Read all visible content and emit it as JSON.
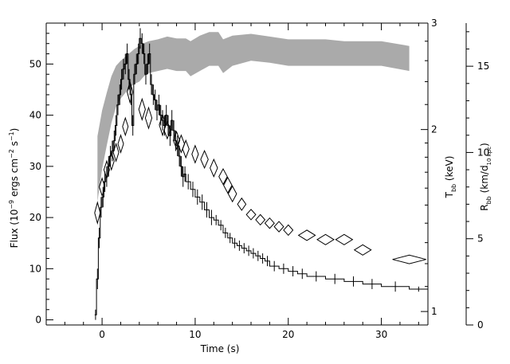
{
  "chart_data": {
    "type": "line",
    "axes": {
      "x": {
        "label": "Time (s)",
        "range": [
          -6,
          35
        ],
        "ticks": [
          0,
          10,
          20,
          30
        ],
        "minor_step": 2
      },
      "y_left": {
        "label_main": "Flux (10",
        "label_exp1": "−9",
        "label_mid": " ergs cm",
        "label_exp2": "−2",
        "label_mid2": " s",
        "label_exp3": "−1",
        "label_end": ")",
        "range": [
          -1,
          58
        ],
        "ticks": [
          0,
          10,
          20,
          30,
          40,
          50
        ],
        "minor_step": 2
      },
      "y_temp": {
        "label_main": "T",
        "label_sub": "bb",
        "label_end": " (keV)",
        "scale": "log",
        "range": [
          0.95,
          3.0
        ],
        "ticks": [
          1,
          2,
          3
        ],
        "minor_ticks": [
          1.1,
          1.2,
          1.3,
          1.4,
          1.5,
          1.6,
          1.7,
          1.8,
          1.9,
          2.2,
          2.4,
          2.6,
          2.8
        ]
      },
      "y_radius": {
        "label_main": "R",
        "label_sub": "bb",
        "label_mid": " (km/d",
        "label_sub2": "10 kpc",
        "label_end": ")",
        "range": [
          0,
          17.5
        ],
        "ticks": [
          0,
          5,
          10,
          15
        ],
        "minor_step": 1
      }
    },
    "series": [
      {
        "kind": "flux_histogram",
        "axis": "y_left",
        "t_edges": [
          -0.8,
          -0.6,
          -0.4,
          -0.2,
          0.0,
          0.2,
          0.4,
          0.6,
          0.8,
          1.0,
          1.2,
          1.4,
          1.6,
          1.8,
          2.0,
          2.2,
          2.4,
          2.6,
          2.8,
          3.0,
          3.2,
          3.4,
          3.6,
          3.8,
          4.0,
          4.2,
          4.4,
          4.6,
          4.8,
          5.0,
          5.2,
          5.4,
          5.6,
          5.8,
          6.0,
          6.2,
          6.4,
          6.6,
          6.8,
          7.0,
          7.2,
          7.4,
          7.6,
          7.8,
          8.0,
          8.2,
          8.4,
          8.6,
          8.8,
          9.0,
          9.5,
          10.0,
          10.5,
          11.0,
          11.5,
          12.0,
          12.5,
          13.0,
          13.5,
          14.0,
          14.5,
          15.0,
          15.5,
          16.0,
          16.5,
          17.0,
          17.5,
          18.0,
          19.0,
          20.0,
          21.0,
          22.0,
          24.0,
          26.0,
          28.0,
          30.0,
          33.0,
          35.0
        ],
        "flux": [
          1,
          8,
          16,
          22,
          24,
          27,
          28,
          30,
          32,
          33,
          35,
          38,
          42,
          44,
          47,
          49,
          50,
          52,
          47,
          44,
          38,
          48,
          50,
          52,
          55,
          54,
          52,
          48,
          50,
          52,
          46,
          44,
          43,
          41,
          42,
          40,
          39,
          38,
          40,
          38,
          36,
          39,
          37,
          35,
          34,
          32,
          30,
          28,
          28.5,
          27,
          25.5,
          24,
          23,
          21.5,
          20,
          19.5,
          18.5,
          17,
          16,
          15,
          14.5,
          14,
          13.5,
          13,
          12.5,
          12,
          11.5,
          10.5,
          10,
          9.5,
          9,
          8.5,
          8,
          7.5,
          7,
          6.5,
          6
        ],
        "err": [
          1,
          2,
          2,
          2,
          2,
          2,
          2,
          2,
          2,
          2,
          2,
          2,
          2,
          2,
          2,
          2,
          2,
          2,
          2,
          2,
          2,
          2,
          2,
          2,
          2,
          2,
          2,
          2,
          2,
          2,
          2,
          2,
          2,
          2,
          2,
          2,
          2,
          2,
          2,
          2,
          2,
          2,
          2,
          2,
          2,
          2,
          2,
          2,
          1.5,
          1.5,
          1.5,
          1.5,
          1.5,
          1.5,
          1.5,
          1,
          1,
          1,
          1,
          1,
          1,
          1,
          1,
          1,
          1,
          1,
          1,
          1,
          1,
          1,
          1,
          1,
          1,
          1,
          1,
          1,
          0.5
        ]
      },
      {
        "kind": "temperature_band",
        "axis": "y_temp",
        "t": [
          -0.5,
          0.0,
          0.5,
          1.0,
          1.5,
          2.0,
          2.5,
          3.0,
          3.5,
          4.0,
          4.5,
          5.0,
          6.0,
          7.0,
          8.0,
          9.0,
          9.5,
          10.5,
          11.5,
          12.5,
          13.0,
          14.0,
          16.0,
          18.0,
          20.0,
          22.0,
          24.0,
          26.0,
          28.0,
          30.0,
          33.0
        ],
        "low": [
          1.52,
          1.72,
          1.88,
          2.05,
          2.18,
          2.25,
          2.3,
          2.35,
          2.38,
          2.4,
          2.45,
          2.48,
          2.5,
          2.52,
          2.5,
          2.5,
          2.45,
          2.5,
          2.55,
          2.55,
          2.48,
          2.55,
          2.6,
          2.58,
          2.55,
          2.55,
          2.55,
          2.55,
          2.55,
          2.55,
          2.5
        ],
        "high": [
          1.95,
          2.15,
          2.3,
          2.45,
          2.55,
          2.6,
          2.64,
          2.68,
          2.72,
          2.75,
          2.78,
          2.8,
          2.82,
          2.85,
          2.83,
          2.83,
          2.8,
          2.86,
          2.9,
          2.9,
          2.82,
          2.86,
          2.88,
          2.85,
          2.82,
          2.82,
          2.82,
          2.8,
          2.8,
          2.8,
          2.75
        ],
        "color": "#aaaaaa"
      },
      {
        "kind": "radius_diamonds",
        "axis": "y_radius",
        "points": [
          {
            "t": -0.5,
            "r": 6.5,
            "dt": 0.3,
            "dr": 0.6
          },
          {
            "t": 0.0,
            "r": 8.0,
            "dt": 0.3,
            "dr": 0.5
          },
          {
            "t": 0.5,
            "r": 9.0,
            "dt": 0.3,
            "dr": 0.5
          },
          {
            "t": 1.0,
            "r": 9.5,
            "dt": 0.3,
            "dr": 0.5
          },
          {
            "t": 1.5,
            "r": 10.0,
            "dt": 0.3,
            "dr": 0.5
          },
          {
            "t": 2.0,
            "r": 10.5,
            "dt": 0.3,
            "dr": 0.5
          },
          {
            "t": 2.5,
            "r": 11.5,
            "dt": 0.3,
            "dr": 0.5
          },
          {
            "t": 3.0,
            "r": 13.5,
            "dt": 0.3,
            "dr": 0.6
          },
          {
            "t": 4.3,
            "r": 12.5,
            "dt": 0.35,
            "dr": 0.6
          },
          {
            "t": 5.0,
            "r": 12.0,
            "dt": 0.35,
            "dr": 0.6
          },
          {
            "t": 6.5,
            "r": 11.6,
            "dt": 0.35,
            "dr": 0.6
          },
          {
            "t": 7.0,
            "r": 11.3,
            "dt": 0.35,
            "dr": 0.5
          },
          {
            "t": 8.0,
            "r": 10.7,
            "dt": 0.35,
            "dr": 0.5
          },
          {
            "t": 8.5,
            "r": 10.5,
            "dt": 0.35,
            "dr": 0.5
          },
          {
            "t": 9.0,
            "r": 10.2,
            "dt": 0.35,
            "dr": 0.5
          },
          {
            "t": 10.0,
            "r": 9.9,
            "dt": 0.35,
            "dr": 0.5
          },
          {
            "t": 11.0,
            "r": 9.6,
            "dt": 0.4,
            "dr": 0.5
          },
          {
            "t": 12.0,
            "r": 9.1,
            "dt": 0.4,
            "dr": 0.5
          },
          {
            "t": 13.0,
            "r": 8.6,
            "dt": 0.45,
            "dr": 0.45
          },
          {
            "t": 13.5,
            "r": 8.1,
            "dt": 0.45,
            "dr": 0.45
          },
          {
            "t": 14.0,
            "r": 7.6,
            "dt": 0.45,
            "dr": 0.45
          },
          {
            "t": 15.0,
            "r": 7.0,
            "dt": 0.45,
            "dr": 0.35
          },
          {
            "t": 16.0,
            "r": 6.4,
            "dt": 0.5,
            "dr": 0.3
          },
          {
            "t": 17.0,
            "r": 6.1,
            "dt": 0.5,
            "dr": 0.3
          },
          {
            "t": 18.0,
            "r": 5.9,
            "dt": 0.5,
            "dr": 0.3
          },
          {
            "t": 19.0,
            "r": 5.7,
            "dt": 0.5,
            "dr": 0.3
          },
          {
            "t": 20.0,
            "r": 5.5,
            "dt": 0.5,
            "dr": 0.3
          },
          {
            "t": 22.0,
            "r": 5.2,
            "dt": 0.9,
            "dr": 0.3
          },
          {
            "t": 24.0,
            "r": 4.95,
            "dt": 0.9,
            "dr": 0.3
          },
          {
            "t": 26.0,
            "r": 4.95,
            "dt": 0.9,
            "dr": 0.3
          },
          {
            "t": 28.0,
            "r": 4.35,
            "dt": 0.9,
            "dr": 0.3
          },
          {
            "t": 33.0,
            "r": 3.8,
            "dt": 1.8,
            "dr": 0.25
          }
        ]
      }
    ],
    "grid": false,
    "legend": "none"
  }
}
